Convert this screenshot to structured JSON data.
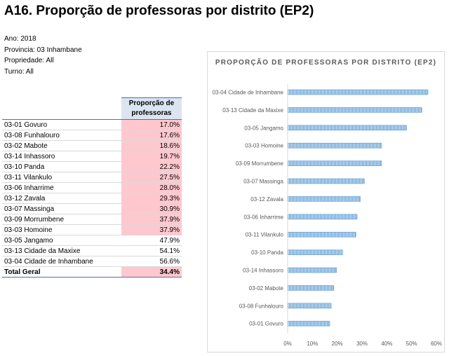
{
  "page": {
    "title": "A16. Proporção de professoras por distrito (EP2)",
    "meta": [
      "Ano: 2018",
      "Provincia: 03 Inhambane",
      "Propriedade: All",
      "Turno: All"
    ]
  },
  "table": {
    "header": "Proporção de professoras",
    "rows": [
      {
        "label": "03-01 Govuro",
        "value": "17.0%",
        "highlight": true
      },
      {
        "label": "03-08 Funhalouro",
        "value": "17.6%",
        "highlight": true
      },
      {
        "label": "03-02 Mabote",
        "value": "18.6%",
        "highlight": true
      },
      {
        "label": "03-14 Inhassoro",
        "value": "19.7%",
        "highlight": true
      },
      {
        "label": "03-10 Panda",
        "value": "22.2%",
        "highlight": true
      },
      {
        "label": "03-11 Vilankulo",
        "value": "27.5%",
        "highlight": true
      },
      {
        "label": "03-06 Inharrime",
        "value": "28.0%",
        "highlight": true
      },
      {
        "label": "03-12 Zavala",
        "value": "29.3%",
        "highlight": true
      },
      {
        "label": "03-07 Massinga",
        "value": "30.9%",
        "highlight": true
      },
      {
        "label": "03-09 Morrumbene",
        "value": "37.9%",
        "highlight": true
      },
      {
        "label": "03-03 Homoine",
        "value": "37.9%",
        "highlight": true
      },
      {
        "label": "03-05 Jangamo",
        "value": "47.9%",
        "highlight": false
      },
      {
        "label": "03-13 Cidade da Maxixe",
        "value": "54.1%",
        "highlight": false
      },
      {
        "label": "03-04 Cidade de Inhambane",
        "value": "56.6%",
        "highlight": false
      }
    ],
    "total": {
      "label": "Total Geral",
      "value": "34.4%",
      "highlight": true
    },
    "colors": {
      "highlight": "#ffc7ce",
      "header": "#dbe5f1"
    }
  },
  "chart_data": {
    "type": "bar",
    "orientation": "horizontal",
    "title": "PROPORÇÃO DE PROFESSORAS POR DISTRITO (EP2)",
    "categories": [
      "03-04 Cidade de Inhambane",
      "03-13 Cidade da Maxixe",
      "03-05 Jangamo",
      "03-03 Homoine",
      "03-09 Morrumbene",
      "03-07 Massinga",
      "03-12 Zavala",
      "03-06 Inharrime",
      "03-11 Vilankulo",
      "03-10 Panda",
      "03-14 Inhassoro",
      "03-02 Mabote",
      "03-08 Funhalouro",
      "03-01 Govuro"
    ],
    "values": [
      56.6,
      54.1,
      47.9,
      37.9,
      37.9,
      30.9,
      29.3,
      28.0,
      27.5,
      22.2,
      19.7,
      18.6,
      17.6,
      17.0
    ],
    "xlim": [
      0,
      60
    ],
    "xticks": [
      "0%",
      "10%",
      "20%",
      "30%",
      "40%",
      "50%",
      "60%"
    ],
    "bar_color": "#5b9bd5",
    "grid": false
  }
}
